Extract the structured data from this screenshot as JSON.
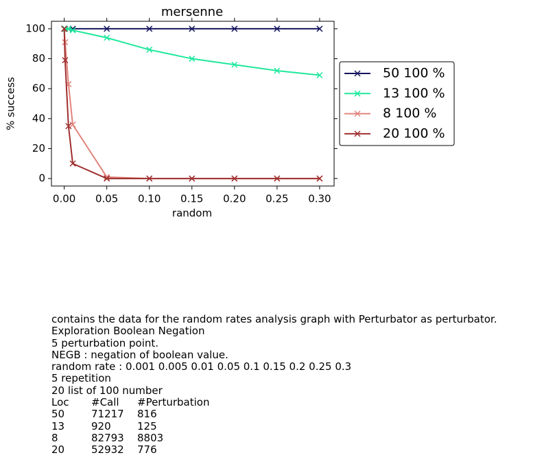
{
  "chart_data": {
    "type": "line",
    "title": "mersenne",
    "xlabel": "random",
    "ylabel": "% success",
    "x": [
      0,
      0.001,
      0.005,
      0.01,
      0.05,
      0.1,
      0.15,
      0.2,
      0.25,
      0.3
    ],
    "series": [
      {
        "name": "50 100 %",
        "color": "#14145e",
        "values": [
          100,
          100,
          100,
          100,
          100,
          100,
          100,
          100,
          100,
          100
        ]
      },
      {
        "name": "13 100 %",
        "color": "#1ee89c",
        "values": [
          100,
          100,
          100,
          99,
          94,
          86,
          80,
          76,
          72,
          69
        ]
      },
      {
        "name": "8 100 %",
        "color": "#e0837b",
        "values": [
          100,
          91,
          63,
          36,
          1,
          0,
          0,
          0,
          0,
          0
        ]
      },
      {
        "name": "20 100 %",
        "color": "#9e2f2e",
        "values": [
          100,
          79,
          35,
          10,
          0,
          0,
          0,
          0,
          0,
          0
        ]
      }
    ],
    "xlim": [
      -0.015,
      0.317
    ],
    "ylim": [
      -5,
      105
    ],
    "xticks": [
      {
        "value": 0,
        "label": "0.00"
      },
      {
        "value": 0.05,
        "label": "0.05"
      },
      {
        "value": 0.1,
        "label": "0.10"
      },
      {
        "value": 0.15,
        "label": "0.15"
      },
      {
        "value": 0.2,
        "label": "0.20"
      },
      {
        "value": 0.25,
        "label": "0.25"
      },
      {
        "value": 0.3,
        "label": "0.30"
      }
    ],
    "yticks": [
      0,
      20,
      40,
      60,
      80,
      100
    ],
    "legend": "outside-right"
  },
  "notes": {
    "lines": [
      "contains the data for the random rates analysis graph with Perturbator as perturbator.",
      "Exploration Boolean Negation",
      "5 perturbation point.",
      "NEGB : negation of boolean value.",
      "random rate : 0.001 0.005 0.01 0.05 0.1 0.15 0.2 0.25 0.3",
      "5 repetition",
      "20 list of 100 number"
    ],
    "table": {
      "header": [
        "Loc",
        "#Call",
        "#Perturbation"
      ],
      "rows": [
        [
          "50",
          "71217",
          "816"
        ],
        [
          "13",
          "920",
          "125"
        ],
        [
          "8",
          "82793",
          "8803"
        ],
        [
          "20",
          "52932",
          "776"
        ]
      ]
    }
  }
}
